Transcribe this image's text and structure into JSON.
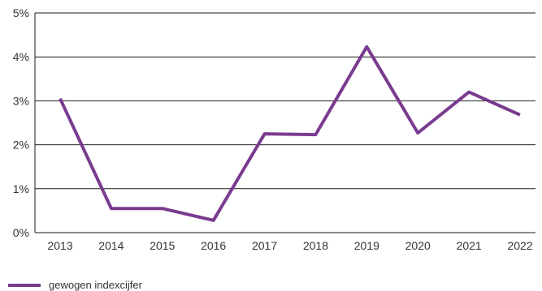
{
  "chart_data": {
    "type": "line",
    "x": [
      "2013",
      "2014",
      "2015",
      "2016",
      "2017",
      "2018",
      "2019",
      "2020",
      "2021",
      "2022"
    ],
    "series": [
      {
        "name": "gewogen indexcijfer",
        "values": [
          3.05,
          0.55,
          0.55,
          0.28,
          2.25,
          2.23,
          4.23,
          2.27,
          3.2,
          2.68
        ]
      }
    ],
    "yticks": [
      "0%",
      "1%",
      "2%",
      "3%",
      "4%",
      "5%"
    ],
    "ylim": [
      0,
      5
    ],
    "grid": true,
    "legend": "bottom-left",
    "colors": {
      "series": "#7a3b8f",
      "grid": "#1a1a1a",
      "text": "#333333"
    }
  }
}
